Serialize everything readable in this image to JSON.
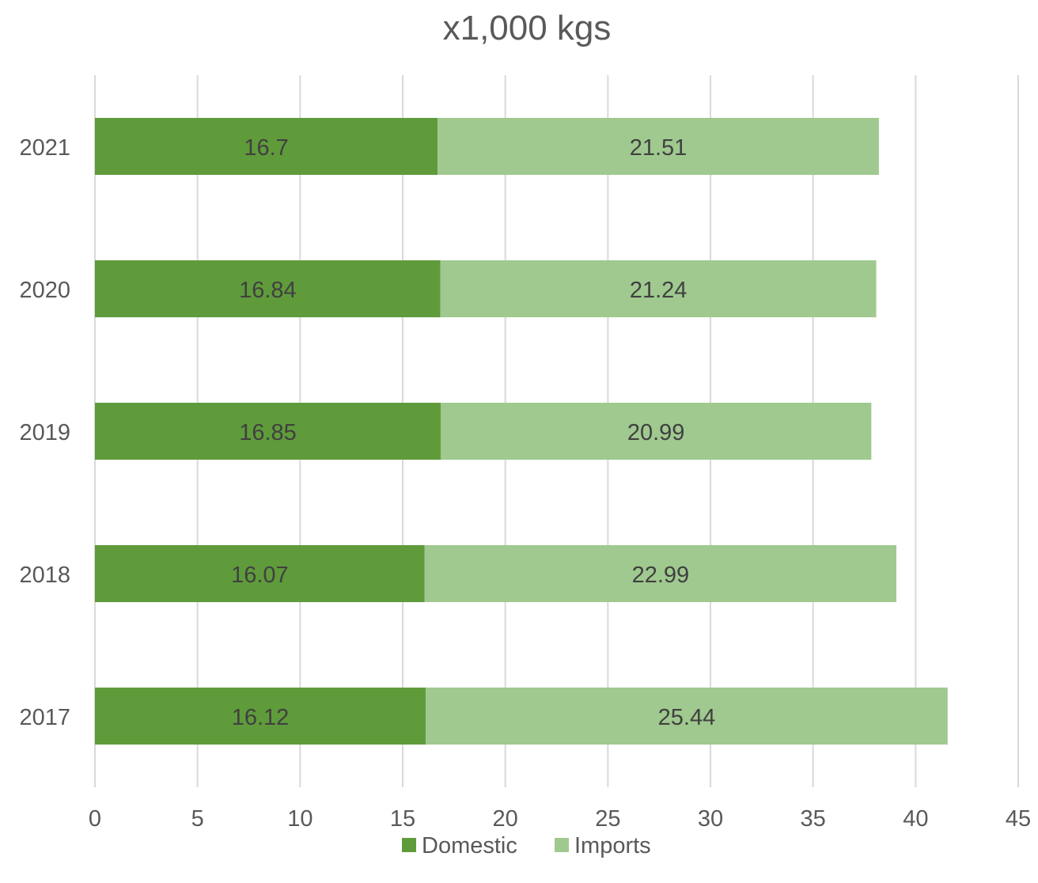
{
  "chart_data": {
    "type": "bar",
    "orientation": "horizontal",
    "stacked": true,
    "title": "x1,000 kgs",
    "categories": [
      "2021",
      "2020",
      "2019",
      "2018",
      "2017"
    ],
    "series": [
      {
        "name": "Domestic",
        "color": "#5f9b3b",
        "values": [
          16.7,
          16.84,
          16.85,
          16.07,
          16.12
        ],
        "labels": [
          "16.7",
          "16.84",
          "16.85",
          "16.07",
          "16.12"
        ]
      },
      {
        "name": "Imports",
        "color": "#a0c98f",
        "values": [
          21.51,
          21.24,
          20.99,
          22.99,
          25.44
        ],
        "labels": [
          "21.51",
          "21.24",
          "20.99",
          "22.99",
          "25.44"
        ]
      }
    ],
    "xlim": [
      0,
      45
    ],
    "xticks": [
      "0",
      "5",
      "10",
      "15",
      "20",
      "25",
      "30",
      "35",
      "40",
      "45"
    ],
    "grid": true,
    "legend": "bottom"
  }
}
